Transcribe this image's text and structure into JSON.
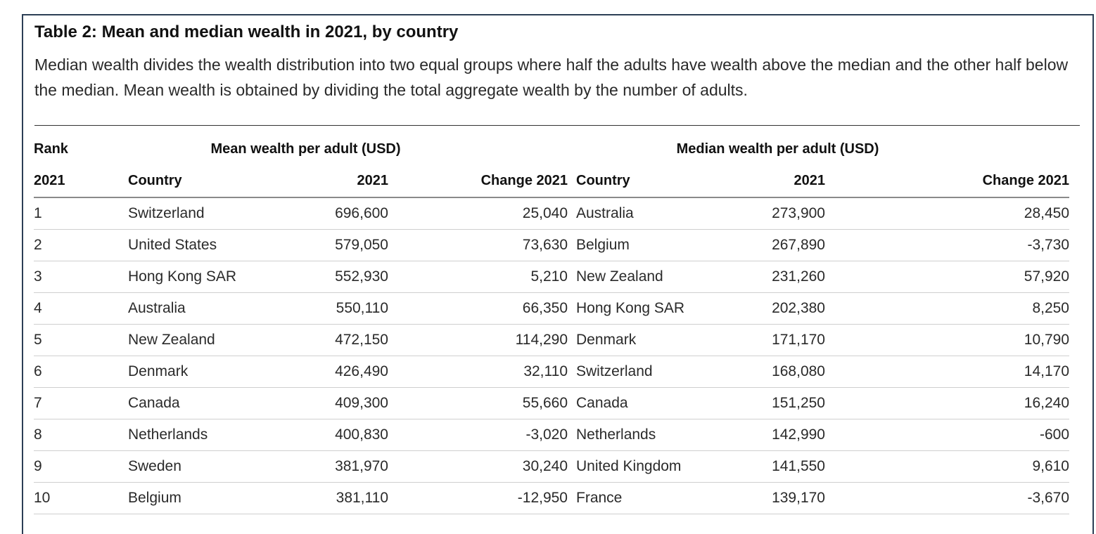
{
  "title": "Table 2: Mean and median wealth in 2021, by country",
  "subtitle": "Median wealth divides the wealth distribution into two equal groups where half the adults have wealth above the median and the other half below the median. Mean wealth is obtained by dividing the total aggregate wealth by the number of adults.",
  "header": {
    "rank": "Rank",
    "mean_group": "Mean wealth per adult (USD)",
    "median_group": "Median wealth per adult (USD)",
    "rank_year": "2021",
    "country": "Country",
    "year": "2021",
    "change": "Change 2021"
  },
  "rows": [
    {
      "rank": "1",
      "mean_country": "Switzerland",
      "mean_2021": "696,600",
      "mean_change": "25,040",
      "median_country": "Australia",
      "median_2021": "273,900",
      "median_change": "28,450"
    },
    {
      "rank": "2",
      "mean_country": "United States",
      "mean_2021": "579,050",
      "mean_change": "73,630",
      "median_country": "Belgium",
      "median_2021": "267,890",
      "median_change": "-3,730"
    },
    {
      "rank": "3",
      "mean_country": "Hong Kong SAR",
      "mean_2021": "552,930",
      "mean_change": "5,210",
      "median_country": "New Zealand",
      "median_2021": "231,260",
      "median_change": "57,920"
    },
    {
      "rank": "4",
      "mean_country": "Australia",
      "mean_2021": "550,110",
      "mean_change": "66,350",
      "median_country": "Hong Kong SAR",
      "median_2021": "202,380",
      "median_change": "8,250"
    },
    {
      "rank": "5",
      "mean_country": "New Zealand",
      "mean_2021": "472,150",
      "mean_change": "114,290",
      "median_country": "Denmark",
      "median_2021": "171,170",
      "median_change": "10,790"
    },
    {
      "rank": "6",
      "mean_country": "Denmark",
      "mean_2021": "426,490",
      "mean_change": "32,110",
      "median_country": "Switzerland",
      "median_2021": "168,080",
      "median_change": "14,170"
    },
    {
      "rank": "7",
      "mean_country": "Canada",
      "mean_2021": "409,300",
      "mean_change": "55,660",
      "median_country": "Canada",
      "median_2021": "151,250",
      "median_change": "16,240"
    },
    {
      "rank": "8",
      "mean_country": "Netherlands",
      "mean_2021": "400,830",
      "mean_change": "-3,020",
      "median_country": "Netherlands",
      "median_2021": "142,990",
      "median_change": "-600"
    },
    {
      "rank": "9",
      "mean_country": "Sweden",
      "mean_2021": "381,970",
      "mean_change": "30,240",
      "median_country": "United Kingdom",
      "median_2021": "141,550",
      "median_change": "9,610"
    },
    {
      "rank": "10",
      "mean_country": "Belgium",
      "mean_2021": "381,110",
      "mean_change": "-12,950",
      "median_country": "France",
      "median_2021": "139,170",
      "median_change": "-3,670"
    }
  ]
}
